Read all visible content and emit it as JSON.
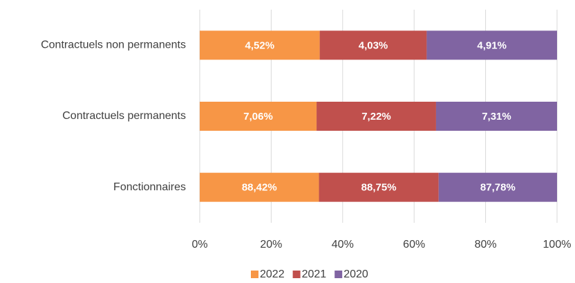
{
  "chart_data": {
    "type": "bar",
    "orientation": "horizontal",
    "stacking": "percent",
    "categories": [
      "Contractuels non permanents",
      "Contractuels permanents",
      "Fonctionnaires"
    ],
    "series": [
      {
        "name": "2022",
        "color": "#f79646",
        "values": [
          4.52,
          7.06,
          88.42
        ],
        "value_labels": [
          "4,52%",
          "7,06%",
          "88,42%"
        ]
      },
      {
        "name": "2021",
        "color": "#c0504d",
        "values": [
          4.03,
          7.22,
          88.75
        ],
        "value_labels": [
          "4,03%",
          "7,22%",
          "88,75%"
        ]
      },
      {
        "name": "2020",
        "color": "#8064a2",
        "values": [
          4.91,
          7.31,
          87.78
        ],
        "value_labels": [
          "4,91%",
          "7,31%",
          "87,78%"
        ]
      }
    ],
    "xlim": [
      0,
      100
    ],
    "xticks": [
      {
        "value": 0,
        "label": "0%"
      },
      {
        "value": 20,
        "label": "20%"
      },
      {
        "value": 40,
        "label": "40%"
      },
      {
        "value": 60,
        "label": "60%"
      },
      {
        "value": 80,
        "label": "80%"
      },
      {
        "value": 100,
        "label": "100%"
      }
    ],
    "grid": true,
    "legend": "bottom"
  }
}
